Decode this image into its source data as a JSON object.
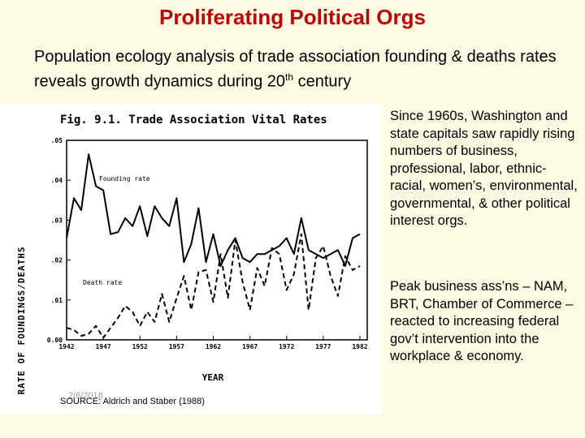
{
  "slide": {
    "title": "Proliferating Political Orgs",
    "subtitle_main": "Population ecology analysis of trade association founding & deaths rates reveals growth dynamics during 20",
    "subtitle_sup": "th",
    "subtitle_end": " century"
  },
  "bullets": [
    "Since 1960s, Washington and state capitals saw rapidly rising numbers of business, professional, labor, ethnic-racial, women’s, environmental, governmental, & other political interest orgs.",
    "Peak business ass’ns – NAM, BRT, Chamber of Commerce – reacted to increasing federal gov’t intervention into the workplace & economy."
  ],
  "figure": {
    "date_overlay": "2/6/2018",
    "source": "SOURCE: Aldrich and Staber (1988)"
  },
  "chart_data": {
    "type": "line",
    "title": "Fig. 9.1. Trade Association Vital Rates",
    "xlabel": "YEAR",
    "ylabel": "RATE OF FOUNDINGS/DEATHS",
    "xlim": [
      1942,
      1983
    ],
    "ylim": [
      0,
      0.05
    ],
    "x_ticks": [
      1942,
      1947,
      1952,
      1957,
      1962,
      1967,
      1972,
      1977,
      1982
    ],
    "y_ticks": [
      0,
      0.01,
      0.02,
      0.03,
      0.04,
      0.05
    ],
    "y_tick_labels": [
      "0.00",
      ".01",
      ".02",
      ".03",
      ".04",
      ".05"
    ],
    "grid": false,
    "x": [
      1942,
      1943,
      1944,
      1945,
      1946,
      1947,
      1948,
      1949,
      1950,
      1951,
      1952,
      1953,
      1954,
      1955,
      1956,
      1957,
      1958,
      1959,
      1960,
      1961,
      1962,
      1963,
      1964,
      1965,
      1966,
      1967,
      1968,
      1969,
      1970,
      1971,
      1972,
      1973,
      1974,
      1975,
      1976,
      1977,
      1978,
      1979,
      1980,
      1981,
      1982
    ],
    "series": [
      {
        "name": "Founding rate",
        "style": "solid",
        "values": [
          0.0255,
          0.0355,
          0.0325,
          0.0465,
          0.0385,
          0.0375,
          0.0265,
          0.027,
          0.0305,
          0.0285,
          0.0335,
          0.026,
          0.0335,
          0.0305,
          0.0285,
          0.0355,
          0.0195,
          0.024,
          0.033,
          0.0195,
          0.0265,
          0.0185,
          0.0225,
          0.0255,
          0.0205,
          0.0195,
          0.0215,
          0.0215,
          0.0225,
          0.0235,
          0.0255,
          0.0215,
          0.0305,
          0.0225,
          0.0215,
          0.0205,
          0.0215,
          0.0225,
          0.0185,
          0.0255,
          0.0265
        ]
      },
      {
        "name": "Death rate",
        "style": "dashed",
        "values": [
          0.003,
          0.0025,
          0.001,
          0.0015,
          0.0035,
          0.0005,
          0.003,
          0.0055,
          0.0085,
          0.007,
          0.0035,
          0.007,
          0.0045,
          0.0115,
          0.0045,
          0.0105,
          0.016,
          0.0075,
          0.017,
          0.0175,
          0.0095,
          0.0215,
          0.0105,
          0.025,
          0.0145,
          0.0075,
          0.018,
          0.0135,
          0.023,
          0.0215,
          0.0125,
          0.0165,
          0.0265,
          0.0075,
          0.0205,
          0.0235,
          0.016,
          0.011,
          0.021,
          0.0175,
          0.0185
        ]
      }
    ]
  }
}
